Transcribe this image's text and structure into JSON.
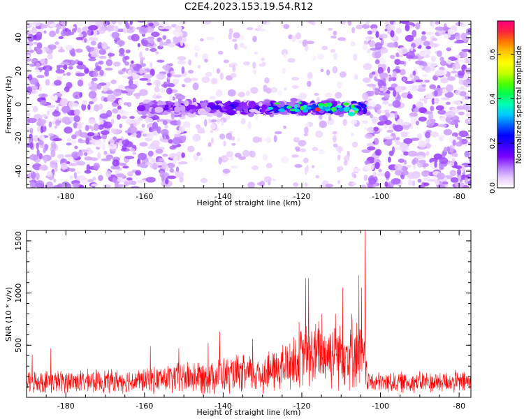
{
  "title": "C2E4.2023.153.19.54.R12",
  "chart_data": [
    {
      "type": "heatmap",
      "xlabel": "Height of straight line (km)",
      "ylabel": "Frequency (Hz)",
      "xlim": [
        -190,
        -77
      ],
      "ylim": [
        -50,
        50
      ],
      "xticks": [
        -180,
        -160,
        -140,
        -120,
        -100,
        -80
      ],
      "yticks": [
        -40,
        -20,
        0,
        20,
        40
      ],
      "colorbar": {
        "label": "Normalized spectral amplitude",
        "range": [
          0,
          0.75
        ],
        "ticks": [
          0.0,
          0.2,
          0.4,
          0.6
        ],
        "colors": [
          "#ffffff",
          "#e6c8ff",
          "#b070ff",
          "#7a00ff",
          "#3a00ff",
          "#0000ff",
          "#0060ff",
          "#00c8ff",
          "#00ffb4",
          "#00ff50",
          "#50ff00",
          "#c8ff00",
          "#ffff00",
          "#ffc800",
          "#ff7800",
          "#ff2040",
          "#ff0080"
        ]
      },
      "features": {
        "band_center_hz": -2,
        "band_halfwidth_hz": 6,
        "band_extent_km": [
          -161,
          -104
        ],
        "peak_amplitude": 0.7,
        "peak_location": {
          "x": -116,
          "y": -3
        },
        "noisy_regions_km": [
          [
            -190,
            -150
          ],
          [
            -104,
            -77
          ]
        ],
        "quiet_region_km": [
          -150,
          -104
        ]
      }
    },
    {
      "type": "line",
      "xlabel": "Height of straight line (km)",
      "ylabel": "SNR (10 * v/v)",
      "xlim": [
        -190,
        -77
      ],
      "ylim": [
        0,
        1600
      ],
      "xticks": [
        -180,
        -160,
        -140,
        -120,
        -100,
        -80
      ],
      "yticks": [
        500,
        1000,
        1500
      ],
      "color": "#ff0000",
      "envelope": [
        {
          "x": -190,
          "base": 150,
          "amp": 120
        },
        {
          "x": -160,
          "base": 160,
          "amp": 130
        },
        {
          "x": -150,
          "base": 190,
          "amp": 180
        },
        {
          "x": -140,
          "base": 210,
          "amp": 200
        },
        {
          "x": -130,
          "base": 230,
          "amp": 220
        },
        {
          "x": -125,
          "base": 280,
          "amp": 260
        },
        {
          "x": -120,
          "base": 380,
          "amp": 340
        },
        {
          "x": -115,
          "base": 420,
          "amp": 380
        },
        {
          "x": -110,
          "base": 430,
          "amp": 380
        },
        {
          "x": -106,
          "base": 420,
          "amp": 380
        },
        {
          "x": -104,
          "base": 350,
          "amp": 300
        },
        {
          "x": -103,
          "base": 140,
          "amp": 110
        },
        {
          "x": -77,
          "base": 150,
          "amp": 120
        }
      ],
      "spikes": [
        {
          "x": -188.6,
          "y": 410
        },
        {
          "x": -183.8,
          "y": 470
        },
        {
          "x": -158.5,
          "y": 490
        },
        {
          "x": -151.3,
          "y": 470
        },
        {
          "x": -143.8,
          "y": 520
        },
        {
          "x": -140.9,
          "y": 630
        },
        {
          "x": -132.5,
          "y": 560
        },
        {
          "x": -124.8,
          "y": 500
        },
        {
          "x": -120.7,
          "y": 720
        },
        {
          "x": -119.0,
          "y": 1140
        },
        {
          "x": -118.3,
          "y": 1140
        },
        {
          "x": -114.9,
          "y": 800
        },
        {
          "x": -111.4,
          "y": 800
        },
        {
          "x": -109.6,
          "y": 1050
        },
        {
          "x": -107.3,
          "y": 800
        },
        {
          "x": -105.5,
          "y": 1170
        },
        {
          "x": -104.8,
          "y": 1050
        },
        {
          "x": -103.9,
          "y": 1600
        }
      ]
    }
  ]
}
